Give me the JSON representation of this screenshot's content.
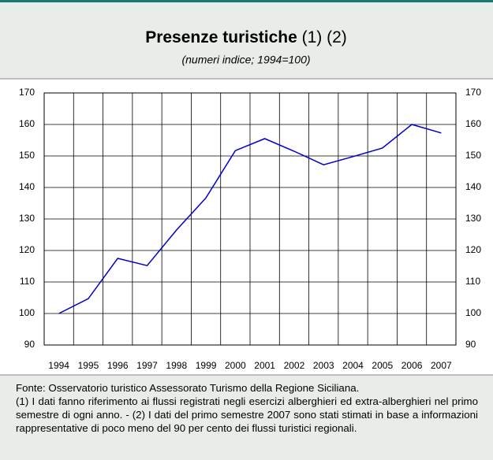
{
  "chart_data": {
    "type": "line",
    "title": "Presenze turistiche",
    "title_note": "(1) (2)",
    "subtitle": "(numeri indice; 1994=100)",
    "categories": [
      "1994",
      "1995",
      "1996",
      "1997",
      "1998",
      "1999",
      "2000",
      "2001",
      "2002",
      "2003",
      "2004",
      "2005",
      "2006",
      "2007"
    ],
    "series": [
      {
        "name": "Presenze turistiche",
        "color": "#0000cc",
        "values": [
          100,
          104.7,
          117.5,
          115.2,
          126.5,
          136.7,
          151.7,
          155.5,
          151.5,
          147.2,
          149.8,
          152.5,
          160,
          157.3
        ]
      }
    ],
    "ylim": [
      90,
      170
    ],
    "yticks": [
      90,
      100,
      110,
      120,
      130,
      140,
      150,
      160,
      170
    ],
    "grid": true,
    "source": "Fonte: Osservatorio turistico Assessorato Turismo della Regione Siciliana.",
    "notes": "(1) I dati fanno riferimento ai flussi registrati negli esercizi alberghieri ed extra-alberghieri nel primo semestre di ogni anno. - (2) I dati del primo semestre 2007 sono stati stimati in base a informazioni rappresentative di poco meno del 90 per cento dei flussi turistici regionali."
  }
}
